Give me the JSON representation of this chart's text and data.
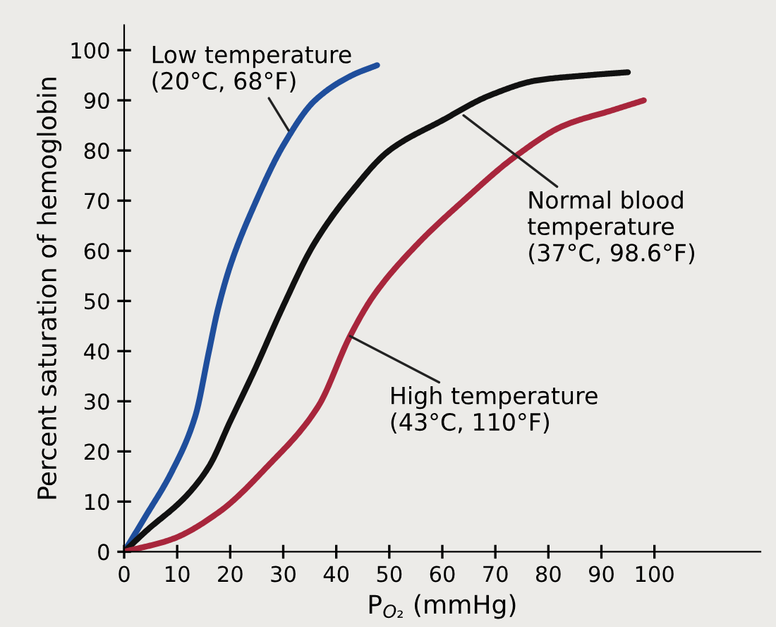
{
  "chart_data": {
    "type": "line",
    "xlabel": "P$_{O₂}$ (mmHg)",
    "ylabel": "Percent saturation of hemoglobin",
    "xlim": [
      0,
      120
    ],
    "ylim": [
      0,
      105
    ],
    "xticks": [
      0,
      10,
      20,
      30,
      40,
      50,
      60,
      70,
      80,
      90,
      100
    ],
    "yticks": [
      0,
      10,
      20,
      30,
      40,
      50,
      60,
      70,
      80,
      90,
      100
    ],
    "grid": false,
    "marker": "none",
    "line_style": "solid",
    "series": [
      {
        "color": "#1f4e9c",
        "x": [
          0,
          4,
          9,
          13.4,
          16,
          17.6,
          20,
          24.5,
          30,
          36,
          43,
          47.7
        ],
        "values": [
          0,
          7,
          16,
          27,
          40,
          48,
          57,
          69,
          81,
          90,
          95,
          97
        ]
      },
      {
        "color": "#111111",
        "x": [
          0,
          4,
          11.6,
          16,
          20,
          24.5,
          30,
          35.6,
          43,
          50,
          60,
          69,
          78,
          87.5,
          95
        ],
        "values": [
          0,
          4,
          11,
          17,
          26,
          36,
          49,
          61,
          72,
          80,
          86,
          91,
          94,
          95,
          95.6
        ]
      },
      {
        "color": "#a8263c",
        "x": [
          0,
          9,
          18,
          27,
          36.6,
          42.6,
          47,
          55,
          64,
          74,
          83,
          92,
          98
        ],
        "values": [
          0,
          2.5,
          8,
          17,
          29,
          43,
          51,
          61,
          70,
          79,
          85,
          88,
          90
        ]
      }
    ],
    "annotations": [
      {
        "text": "Low temperature\n(20°C, 68°F)",
        "x": 31,
        "y": 84
      },
      {
        "text": "Normal blood\ntemperature\n(37°C, 98.6°F)",
        "x": 64,
        "y": 87
      },
      {
        "text": "High temperature\n(43°C, 110°F)",
        "x": 42.6,
        "y": 43
      }
    ]
  }
}
